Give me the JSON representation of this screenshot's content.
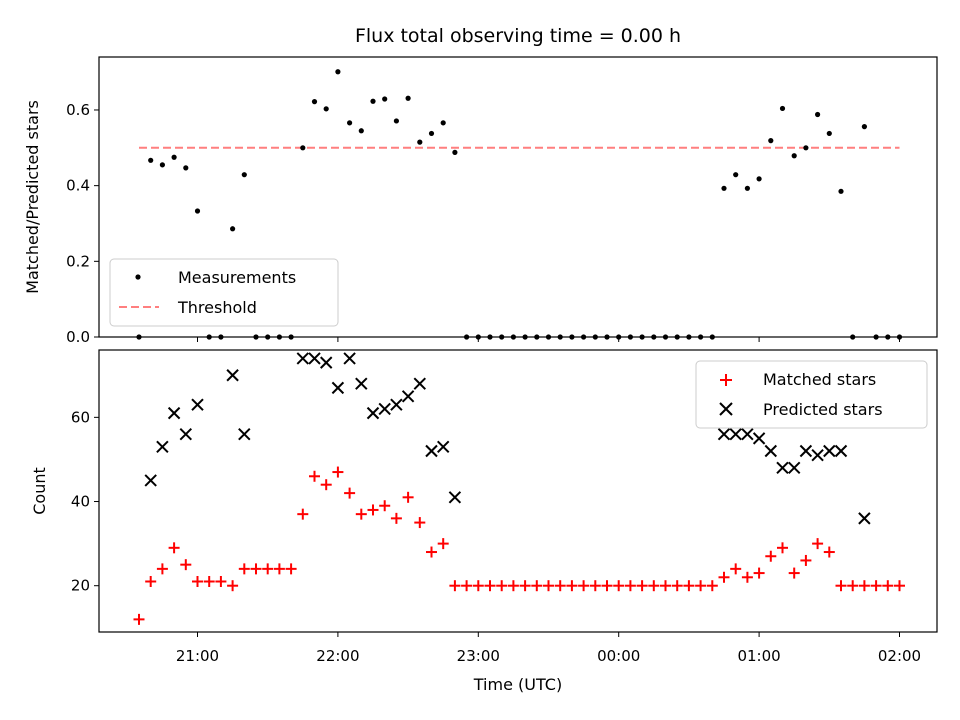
{
  "chart_data": [
    {
      "type": "scatter",
      "title": "Flux total observing time = 0.00 h",
      "xlabel": "",
      "ylabel": "Matched/Predicted stars",
      "ylim": [
        0,
        0.74
      ],
      "yticks": [
        "0.0",
        "0.2",
        "0.4",
        "0.6"
      ],
      "legend": "lower-left",
      "series": [
        {
          "name": "Measurements",
          "marker": "dot",
          "color": "#000000",
          "points": [
            [
              "20:35",
              0
            ],
            [
              "20:40",
              0.467
            ],
            [
              "20:45",
              0.455
            ],
            [
              "20:50",
              0.475
            ],
            [
              "20:55",
              0.447
            ],
            [
              "21:00",
              0.333
            ],
            [
              "21:05",
              0
            ],
            [
              "21:10",
              0
            ],
            [
              "21:15",
              0.286
            ],
            [
              "21:20",
              0.429
            ],
            [
              "21:25",
              0
            ],
            [
              "21:30",
              0
            ],
            [
              "21:35",
              0
            ],
            [
              "21:40",
              0
            ],
            [
              "21:45",
              0.5
            ],
            [
              "21:50",
              0.622
            ],
            [
              "21:55",
              0.603
            ],
            [
              "22:00",
              0.701
            ],
            [
              "22:05",
              0.566
            ],
            [
              "22:10",
              0.545
            ],
            [
              "22:15",
              0.623
            ],
            [
              "22:20",
              0.629
            ],
            [
              "22:25",
              0.571
            ],
            [
              "22:30",
              0.631
            ],
            [
              "22:35",
              0.515
            ],
            [
              "22:40",
              0.538
            ],
            [
              "22:45",
              0.566
            ],
            [
              "22:50",
              0.488
            ],
            [
              "22:55",
              0
            ],
            [
              "23:00",
              0
            ],
            [
              "23:05",
              0
            ],
            [
              "23:10",
              0
            ],
            [
              "23:15",
              0
            ],
            [
              "23:20",
              0
            ],
            [
              "23:25",
              0
            ],
            [
              "23:30",
              0
            ],
            [
              "23:35",
              0
            ],
            [
              "23:40",
              0
            ],
            [
              "23:45",
              0
            ],
            [
              "23:50",
              0
            ],
            [
              "23:55",
              0
            ],
            [
              "00:00",
              0
            ],
            [
              "00:05",
              0
            ],
            [
              "00:10",
              0
            ],
            [
              "00:15",
              0
            ],
            [
              "00:20",
              0
            ],
            [
              "00:25",
              0
            ],
            [
              "00:30",
              0
            ],
            [
              "00:35",
              0
            ],
            [
              "00:40",
              0
            ],
            [
              "00:45",
              0.393
            ],
            [
              "00:50",
              0.429
            ],
            [
              "00:55",
              0.393
            ],
            [
              "01:00",
              0.418
            ],
            [
              "01:05",
              0.519
            ],
            [
              "01:10",
              0.604
            ],
            [
              "01:15",
              0.479
            ],
            [
              "01:20",
              0.5
            ],
            [
              "01:25",
              0.588
            ],
            [
              "01:30",
              0.538
            ],
            [
              "01:35",
              0.385
            ],
            [
              "01:40",
              0
            ],
            [
              "01:45",
              0.556
            ],
            [
              "01:50",
              0
            ],
            [
              "01:55",
              0
            ],
            [
              "02:00",
              0
            ]
          ]
        },
        {
          "name": "Threshold",
          "marker": "dashed-line",
          "color": "#ff7f7f",
          "points": [
            [
              "20:35",
              0.5
            ],
            [
              "02:00",
              0.5
            ]
          ]
        }
      ]
    },
    {
      "type": "scatter",
      "title": "",
      "xlabel": "Time (UTC)",
      "ylabel": "Count",
      "ylim": [
        9,
        76
      ],
      "yticks": [
        "20",
        "40",
        "60"
      ],
      "xticks": [
        "21:00",
        "22:00",
        "23:00",
        "00:00",
        "01:00",
        "02:00"
      ],
      "legend": "upper-right",
      "series": [
        {
          "name": "Matched stars",
          "marker": "plus",
          "color": "#ff0000",
          "points": [
            [
              "20:35",
              12
            ],
            [
              "20:40",
              21
            ],
            [
              "20:45",
              24
            ],
            [
              "20:50",
              29
            ],
            [
              "20:55",
              25
            ],
            [
              "21:00",
              21
            ],
            [
              "21:05",
              21
            ],
            [
              "21:10",
              21
            ],
            [
              "21:15",
              20
            ],
            [
              "21:20",
              24
            ],
            [
              "21:25",
              24
            ],
            [
              "21:30",
              24
            ],
            [
              "21:35",
              24
            ],
            [
              "21:40",
              24
            ],
            [
              "21:45",
              37
            ],
            [
              "21:50",
              46
            ],
            [
              "21:55",
              44
            ],
            [
              "22:00",
              47
            ],
            [
              "22:05",
              42
            ],
            [
              "22:10",
              37
            ],
            [
              "22:15",
              38
            ],
            [
              "22:20",
              39
            ],
            [
              "22:25",
              36
            ],
            [
              "22:30",
              41
            ],
            [
              "22:35",
              35
            ],
            [
              "22:40",
              28
            ],
            [
              "22:45",
              30
            ],
            [
              "22:50",
              20
            ],
            [
              "22:55",
              20
            ],
            [
              "23:00",
              20
            ],
            [
              "23:05",
              20
            ],
            [
              "23:10",
              20
            ],
            [
              "23:15",
              20
            ],
            [
              "23:20",
              20
            ],
            [
              "23:25",
              20
            ],
            [
              "23:30",
              20
            ],
            [
              "23:35",
              20
            ],
            [
              "23:40",
              20
            ],
            [
              "23:45",
              20
            ],
            [
              "23:50",
              20
            ],
            [
              "23:55",
              20
            ],
            [
              "00:00",
              20
            ],
            [
              "00:05",
              20
            ],
            [
              "00:10",
              20
            ],
            [
              "00:15",
              20
            ],
            [
              "00:20",
              20
            ],
            [
              "00:25",
              20
            ],
            [
              "00:30",
              20
            ],
            [
              "00:35",
              20
            ],
            [
              "00:40",
              20
            ],
            [
              "00:45",
              22
            ],
            [
              "00:50",
              24
            ],
            [
              "00:55",
              22
            ],
            [
              "01:00",
              23
            ],
            [
              "01:05",
              27
            ],
            [
              "01:10",
              29
            ],
            [
              "01:15",
              23
            ],
            [
              "01:20",
              26
            ],
            [
              "01:25",
              30
            ],
            [
              "01:30",
              28
            ],
            [
              "01:35",
              20
            ],
            [
              "01:40",
              20
            ],
            [
              "01:45",
              20
            ],
            [
              "01:50",
              20
            ],
            [
              "01:55",
              20
            ],
            [
              "02:00",
              20
            ]
          ]
        },
        {
          "name": "Predicted stars",
          "marker": "x",
          "color": "#000000",
          "points": [
            [
              "20:40",
              45
            ],
            [
              "20:45",
              53
            ],
            [
              "20:50",
              61
            ],
            [
              "20:55",
              56
            ],
            [
              "21:00",
              63
            ],
            [
              "21:15",
              70
            ],
            [
              "21:20",
              56
            ],
            [
              "21:45",
              74
            ],
            [
              "21:50",
              74
            ],
            [
              "21:55",
              73
            ],
            [
              "22:00",
              67
            ],
            [
              "22:05",
              74
            ],
            [
              "22:10",
              68
            ],
            [
              "22:15",
              61
            ],
            [
              "22:20",
              62
            ],
            [
              "22:25",
              63
            ],
            [
              "22:30",
              65
            ],
            [
              "22:35",
              68
            ],
            [
              "22:40",
              52
            ],
            [
              "22:45",
              53
            ],
            [
              "22:50",
              41
            ],
            [
              "00:45",
              56
            ],
            [
              "00:50",
              56
            ],
            [
              "00:55",
              56
            ],
            [
              "01:00",
              55
            ],
            [
              "01:05",
              52
            ],
            [
              "01:10",
              48
            ],
            [
              "01:15",
              48
            ],
            [
              "01:20",
              52
            ],
            [
              "01:25",
              51
            ],
            [
              "01:30",
              52
            ],
            [
              "01:35",
              52
            ],
            [
              "01:45",
              36
            ]
          ]
        }
      ]
    }
  ]
}
